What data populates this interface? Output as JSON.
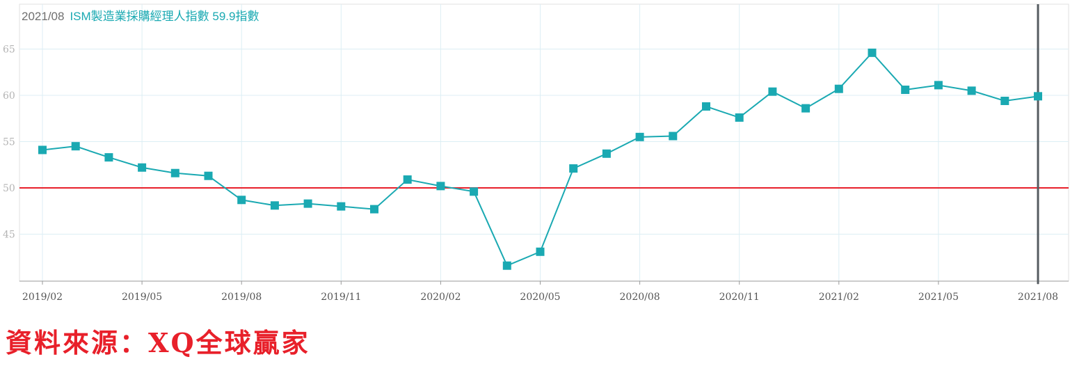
{
  "header": {
    "date": "2021/08",
    "series_label": "ISM製造業採購經理人指數 59.9指數"
  },
  "source_text": "資料來源：XQ全球贏家",
  "colors": {
    "series": "#1aa9b2",
    "reference_line": "#e8202a",
    "cursor_line": "#555b60",
    "grid": "#dceef4",
    "axis_text": "#8a8a8a",
    "source_text": "#e8202a"
  },
  "chart_data": {
    "type": "line",
    "marker": "square",
    "x": [
      "2019/02",
      "2019/03",
      "2019/04",
      "2019/05",
      "2019/06",
      "2019/07",
      "2019/08",
      "2019/09",
      "2019/10",
      "2019/11",
      "2019/12",
      "2020/01",
      "2020/02",
      "2020/03",
      "2020/04",
      "2020/05",
      "2020/06",
      "2020/07",
      "2020/08",
      "2020/09",
      "2020/10",
      "2020/11",
      "2020/12",
      "2021/01",
      "2021/02",
      "2021/03",
      "2021/04",
      "2021/05",
      "2021/06",
      "2021/07",
      "2021/08"
    ],
    "values": [
      54.1,
      54.5,
      53.3,
      52.2,
      51.6,
      51.3,
      48.7,
      48.1,
      48.3,
      48.0,
      47.7,
      50.9,
      50.2,
      49.6,
      41.6,
      43.1,
      52.1,
      53.7,
      55.5,
      55.6,
      58.8,
      57.6,
      60.4,
      58.6,
      60.7,
      64.6,
      60.6,
      61.1,
      60.5,
      59.4,
      59.9
    ],
    "x_ticks": [
      "2019/02",
      "2019/05",
      "2019/08",
      "2019/11",
      "2020/02",
      "2020/05",
      "2020/08",
      "2020/11",
      "2021/02",
      "2021/05",
      "2021/08"
    ],
    "y_ticks": [
      45,
      50,
      55,
      60,
      65
    ],
    "ylim": [
      40,
      70
    ],
    "reference_line": 50,
    "cursor_at": "2021/08",
    "grid": true
  }
}
